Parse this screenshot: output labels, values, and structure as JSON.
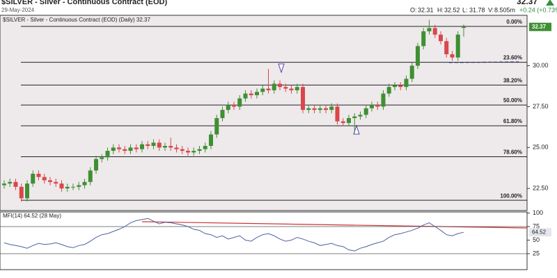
{
  "header": {
    "title": "$SILVER - Silver - Continuous Contract (EOD)",
    "date": "29-May-2024",
    "last": "32.37",
    "open_label": "O:",
    "open": "32.31",
    "high_label": "H:",
    "high": "32.52",
    "low_label": "L:",
    "low": "31.78",
    "volume_label": "V:",
    "volume": "8.505m",
    "change": "+0.24 (+0.73%)"
  },
  "chart_data": [
    {
      "type": "candlestick",
      "title": "$SILVER - Silver - Continuous Contract (EOD) (Daily) 32.37",
      "up_color": "#3f8f33",
      "down_color": "#d9474c",
      "ylim": [
        21.15,
        33.08
      ],
      "yticks": [
        {
          "value": 30,
          "label": "30.00"
        },
        {
          "value": 27.5,
          "label": "27.50"
        },
        {
          "value": 25,
          "label": "25.00"
        },
        {
          "value": 22.5,
          "label": "22.50"
        }
      ],
      "fib_levels": [
        {
          "label": "0.00%",
          "value": 32.4
        },
        {
          "label": "23.60%",
          "value": 30.21
        },
        {
          "label": "38.20%",
          "value": 28.82
        },
        {
          "label": "50.00%",
          "value": 27.6
        },
        {
          "label": "61.80%",
          "value": 26.33
        },
        {
          "label": "78.60%",
          "value": 24.44
        },
        {
          "label": "100.00%",
          "value": 21.78
        }
      ],
      "open": [
        22.7,
        22.8,
        22.9,
        22.6,
        21.9,
        22.8,
        23.4,
        23.2,
        23.0,
        22.9,
        22.8,
        22.5,
        22.6,
        22.6,
        22.7,
        22.9,
        23.6,
        24.3,
        24.4,
        24.8,
        25.0,
        24.9,
        24.8,
        25.0,
        24.9,
        25.2,
        25.1,
        25.3,
        25.0,
        25.1,
        25.0,
        24.9,
        24.8,
        24.7,
        24.8,
        24.9,
        25.1,
        25.8,
        26.8,
        27.3,
        27.6,
        27.5,
        28.0,
        28.3,
        28.2,
        28.4,
        28.6,
        28.5,
        28.9,
        28.7,
        28.6,
        28.5,
        28.7,
        27.3,
        27.4,
        27.3,
        27.4,
        27.3,
        27.5,
        26.6,
        26.5,
        26.8,
        26.9,
        27.0,
        27.4,
        27.6,
        27.5,
        28.3,
        28.7,
        28.8,
        28.7,
        29.2,
        30.0,
        31.2,
        32.1,
        32.3,
        31.9,
        31.5,
        30.7,
        30.5,
        32.31
      ],
      "high": [
        23.0,
        23.1,
        23.1,
        22.8,
        23.0,
        23.6,
        23.6,
        23.4,
        23.2,
        23.1,
        23.0,
        22.8,
        22.8,
        22.9,
        23.1,
        23.8,
        24.5,
        24.6,
        25.0,
        25.2,
        25.2,
        25.1,
        25.2,
        25.2,
        25.4,
        25.4,
        25.5,
        25.5,
        25.3,
        25.6,
        25.2,
        25.1,
        25.0,
        25.0,
        25.1,
        25.3,
        26.0,
        27.0,
        27.5,
        27.8,
        27.8,
        28.2,
        28.5,
        28.5,
        28.6,
        28.8,
        29.8,
        29.1,
        29.1,
        28.9,
        28.8,
        28.9,
        28.9,
        27.6,
        27.6,
        27.6,
        27.6,
        27.7,
        27.7,
        26.8,
        27.0,
        27.1,
        27.2,
        27.6,
        27.8,
        27.8,
        28.5,
        28.9,
        29.0,
        29.0,
        29.4,
        30.2,
        31.4,
        32.3,
        32.8,
        32.5,
        32.1,
        31.7,
        30.9,
        32.1,
        32.52
      ],
      "low": [
        22.5,
        22.6,
        22.4,
        21.7,
        21.7,
        22.6,
        23.0,
        22.8,
        22.7,
        22.6,
        22.3,
        22.3,
        22.4,
        22.4,
        22.5,
        22.7,
        23.4,
        24.1,
        24.2,
        24.6,
        24.7,
        24.6,
        24.6,
        24.7,
        24.7,
        24.9,
        24.9,
        24.8,
        24.8,
        24.8,
        24.7,
        24.6,
        24.5,
        24.5,
        24.6,
        24.7,
        24.9,
        25.6,
        26.6,
        27.1,
        27.3,
        27.3,
        27.8,
        28.0,
        28.0,
        28.2,
        28.3,
        28.3,
        28.5,
        28.4,
        28.3,
        28.3,
        27.1,
        27.1,
        27.1,
        27.1,
        27.1,
        27.1,
        26.4,
        26.3,
        26.3,
        25.9,
        26.7,
        26.8,
        27.2,
        27.3,
        27.3,
        28.1,
        28.5,
        28.5,
        28.5,
        29.0,
        29.8,
        31.0,
        31.9,
        31.7,
        31.3,
        30.5,
        30.3,
        30.3,
        31.78
      ],
      "close": [
        22.8,
        22.9,
        22.6,
        21.9,
        22.8,
        23.4,
        23.2,
        23.0,
        22.9,
        22.8,
        22.5,
        22.6,
        22.6,
        22.7,
        22.9,
        23.6,
        24.3,
        24.4,
        24.8,
        25.0,
        24.9,
        24.8,
        25.0,
        24.9,
        25.2,
        25.1,
        25.3,
        25.0,
        25.1,
        25.0,
        24.9,
        24.8,
        24.7,
        24.8,
        24.9,
        25.1,
        25.8,
        26.8,
        27.3,
        27.6,
        27.5,
        28.0,
        28.3,
        28.2,
        28.4,
        28.6,
        28.5,
        28.9,
        28.7,
        28.6,
        28.5,
        28.7,
        27.3,
        27.4,
        27.3,
        27.4,
        27.3,
        27.5,
        26.6,
        26.5,
        26.8,
        26.9,
        27.0,
        27.4,
        27.6,
        27.5,
        28.3,
        28.7,
        28.8,
        28.7,
        29.2,
        30.0,
        31.2,
        32.1,
        32.3,
        31.9,
        31.5,
        30.7,
        30.5,
        31.9,
        32.37
      ]
    },
    {
      "type": "line",
      "title": "MFI(14) 64.52 (28 May)",
      "color": "#4f5f9e",
      "ylim": [
        0,
        100
      ],
      "yticks": [
        100,
        75,
        50,
        25
      ],
      "values": [
        45,
        42,
        40,
        38,
        35,
        40,
        44,
        42,
        43,
        45,
        42,
        38,
        36,
        40,
        42,
        48,
        55,
        60,
        62,
        66,
        70,
        75,
        82,
        86,
        88,
        90,
        85,
        80,
        83,
        82,
        80,
        78,
        75,
        70,
        68,
        62,
        60,
        55,
        58,
        52,
        55,
        58,
        50,
        48,
        55,
        60,
        62,
        58,
        52,
        48,
        50,
        55,
        52,
        48,
        45,
        40,
        42,
        44,
        40,
        38,
        32,
        30,
        35,
        38,
        42,
        45,
        48,
        55,
        60,
        62,
        65,
        68,
        72,
        78,
        82,
        75,
        68,
        60,
        58,
        62,
        64.52
      ]
    }
  ]
}
